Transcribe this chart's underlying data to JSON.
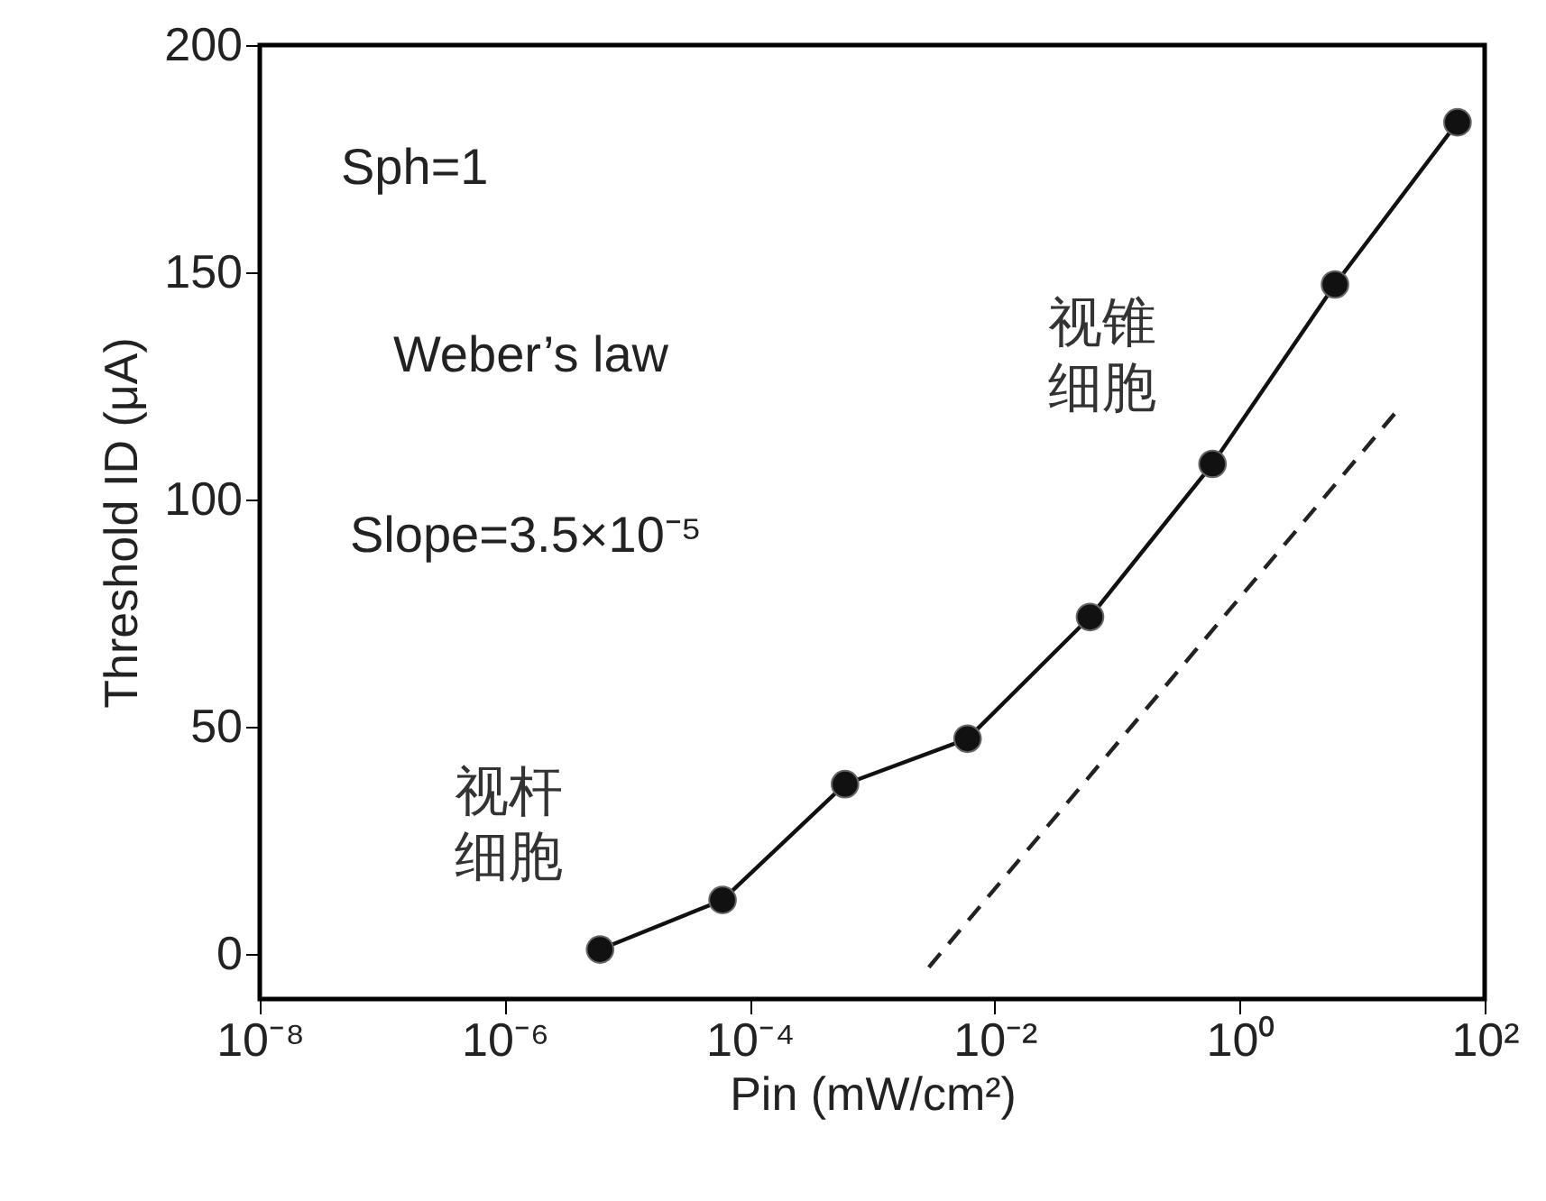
{
  "chart_data": {
    "type": "line",
    "xlabel": "Pin (mW/cm²)",
    "ylabel": "Threshold ID (μA)",
    "x": [
      6e-06,
      6e-05,
      0.0006,
      0.006,
      0.06,
      0.6,
      6,
      60
    ],
    "series": [
      {
        "color": "#111111",
        "values": [
          0.9,
          11.8,
          37.3,
          47.3,
          74.1,
          107.8,
          147.3,
          183
        ],
        "marker": "circle",
        "line_style": "solid"
      },
      {
        "color": "#222222",
        "x": [
          0.0029,
          18.6
        ],
        "values": [
          -3,
          119
        ],
        "marker": "none",
        "line_style": "dashed"
      }
    ],
    "log": "x",
    "xlim": [
      1e-08,
      100
    ],
    "ylim": [
      -10,
      200
    ],
    "xticks": [
      {
        "value": 1e-08,
        "label": "10⁻⁸"
      },
      {
        "value": 1e-06,
        "label": "10⁻⁶"
      },
      {
        "value": 0.0001,
        "label": "10⁻⁴"
      },
      {
        "value": 0.01,
        "label": "10⁻²"
      },
      {
        "value": 1,
        "label": "10⁰"
      },
      {
        "value": 100,
        "label": "10²"
      }
    ],
    "yticks": [
      0,
      50,
      100,
      150,
      200
    ],
    "grid": false,
    "annotations": [
      "Sph=1",
      "Weber’s law",
      "Slope=3.5×10⁻⁵",
      "视锥细胞",
      "视杆细胞"
    ]
  }
}
